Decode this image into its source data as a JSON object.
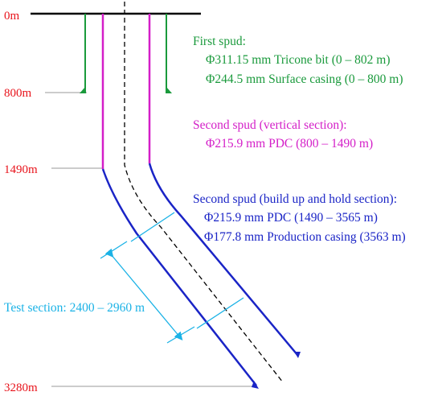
{
  "depth_labels": {
    "d0": "0m",
    "d800": "800m",
    "d1490": "1490m",
    "d3280": "3280m"
  },
  "first_spud": {
    "title": "First spud:",
    "line1": "Φ311.15 mm Tricone bit (0 – 802 m)",
    "line2": "Φ244.5 mm Surface casing (0 – 800 m)",
    "color": "#1a9a3c"
  },
  "second_spud_vertical": {
    "title": "Second spud (vertical section):",
    "line1": "Φ215.9 mm PDC (800 – 1490 m)",
    "color": "#d41ec8"
  },
  "second_spud_build": {
    "title": "Second spud (build up and hold section):",
    "line1": "Φ215.9 mm PDC (1490 – 3565 m)",
    "line2": "Φ177.8 mm Production casing (3563 m)",
    "color": "#1a24c6"
  },
  "test_section": {
    "label": "Test section: 2400 – 2960 m",
    "color": "#1ab2e6"
  },
  "colors": {
    "depth_text": "#e8131b",
    "surface_line": "#000000",
    "centerline": "#000000",
    "depth_leader": "#999999"
  }
}
